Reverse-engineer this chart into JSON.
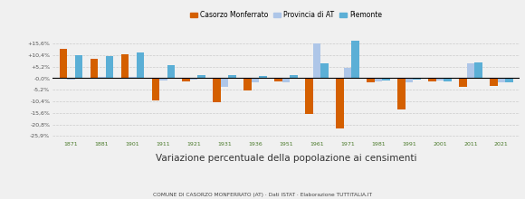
{
  "years": [
    1871,
    1881,
    1901,
    1911,
    1921,
    1931,
    1936,
    1951,
    1961,
    1971,
    1981,
    1991,
    2001,
    2011,
    2021
  ],
  "casorzo": [
    13.2,
    8.5,
    10.8,
    -10.0,
    -1.5,
    -10.8,
    -5.5,
    -1.5,
    -16.0,
    -22.5,
    -1.8,
    -14.0,
    -1.5,
    -4.0,
    -3.5
  ],
  "provincia": [
    -0.5,
    0.5,
    0.5,
    -1.0,
    -0.5,
    -4.0,
    -2.0,
    -1.8,
    15.5,
    4.8,
    -1.5,
    -2.0,
    -1.2,
    6.5,
    -1.8
  ],
  "piemonte": [
    10.5,
    9.8,
    11.5,
    6.0,
    1.5,
    1.5,
    1.0,
    1.5,
    6.5,
    17.0,
    -1.0,
    -0.5,
    -1.5,
    7.0,
    -2.0
  ],
  "color_casorzo": "#d45f00",
  "color_provincia": "#aec6e8",
  "color_piemonte": "#5bafd6",
  "bg_color": "#f0f0f0",
  "yticks": [
    -25.9,
    -20.8,
    -15.6,
    -10.4,
    -5.2,
    0.0,
    5.2,
    10.4,
    15.6
  ],
  "ytick_labels": [
    "-25,9%",
    "-20,8%",
    "-15,6%",
    "-10,4%",
    "-5,2%",
    "-0,0%",
    "+5,2%",
    "+10,4%",
    "+15,6%"
  ],
  "xlabel": "Variazione percentuale della popolazione ai censimenti",
  "subtitle": "COMUNE DI CASORZO MONFERRATO (AT) · Dati ISTAT · Elaborazione TUTTITALIA.IT",
  "ylim": [
    -27.5,
    19.0
  ],
  "legend_labels": [
    "Casorzo Monferrato",
    "Provincia di AT",
    "Piemonte"
  ],
  "bar_width": 0.25
}
